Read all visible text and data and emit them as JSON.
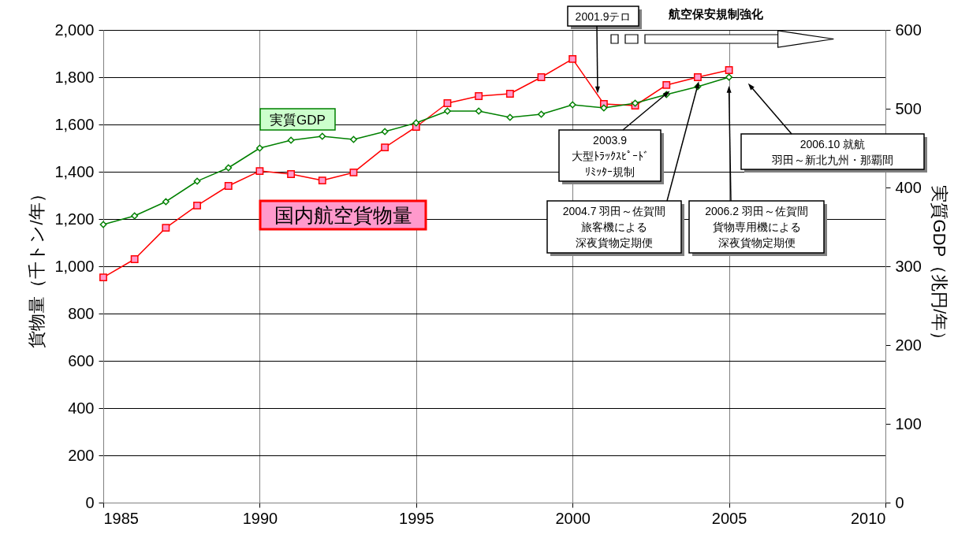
{
  "chart_data": {
    "type": "line",
    "x": [
      1985,
      1986,
      1987,
      1988,
      1989,
      1990,
      1991,
      1992,
      1993,
      1994,
      1995,
      1996,
      1997,
      1998,
      1999,
      2000,
      2001,
      2002,
      2003,
      2004,
      2005
    ],
    "series": [
      {
        "name": "国内航空貨物量",
        "color": "#ff0000",
        "marker": "square",
        "values": [
          953,
          1030,
          1163,
          1257,
          1340,
          1403,
          1390,
          1363,
          1397,
          1503,
          1590,
          1690,
          1720,
          1730,
          1800,
          1877,
          1687,
          1680,
          1767,
          1800,
          1830
        ]
      },
      {
        "name": "実質GDP",
        "color": "#008000",
        "marker": "diamond",
        "axis": "y2",
        "values": [
          353,
          364,
          382,
          408,
          425,
          450,
          460,
          465,
          461,
          471,
          482,
          497,
          497,
          489,
          493,
          505,
          501,
          507,
          518,
          528,
          540
        ]
      }
    ],
    "ylabel": "貨物量（千トン/年）",
    "y2label": "実質GDP（兆円/年）",
    "xlim": [
      1985,
      2010
    ],
    "xticks": [
      1985,
      1990,
      1995,
      2000,
      2005,
      2010
    ],
    "ylim": [
      0,
      2000
    ],
    "yticks": [
      0,
      200,
      400,
      600,
      800,
      {
        "value": 1000,
        "label": "1,000"
      },
      {
        "value": 1200,
        "label": "1,200"
      },
      {
        "value": 1400,
        "label": "1,400"
      },
      {
        "value": 1600,
        "label": "1,600"
      },
      {
        "value": 1800,
        "label": "1,800"
      },
      {
        "value": 2000,
        "label": "2,000"
      }
    ],
    "y2lim": [
      0,
      600
    ],
    "y2ticks": [
      0,
      100,
      200,
      300,
      400,
      500,
      600
    ],
    "grid": true,
    "annotations": [
      {
        "text": "2001.9テロ",
        "x": 2000.8,
        "y": 1750
      },
      {
        "text": "2003.9大型ﾄﾗｯｸｽﾋﾟｰﾄﾞﾘﾐｯﾀｰ規制",
        "x": 2003,
        "y": 1730
      },
      {
        "text": "2004.7 羽田～佐賀間旅客機による深夜貨物定期便",
        "x": 2004,
        "y": 1765
      },
      {
        "text": "2006.2 羽田～佐賀間貨物専用機による深夜貨物定期便",
        "x": 2005,
        "y": 1745
      },
      {
        "text": "2006.10 就航羽田～新北九州・那覇間",
        "x": 2005.7,
        "y": 1760
      },
      "航空保安規制強化"
    ]
  }
}
